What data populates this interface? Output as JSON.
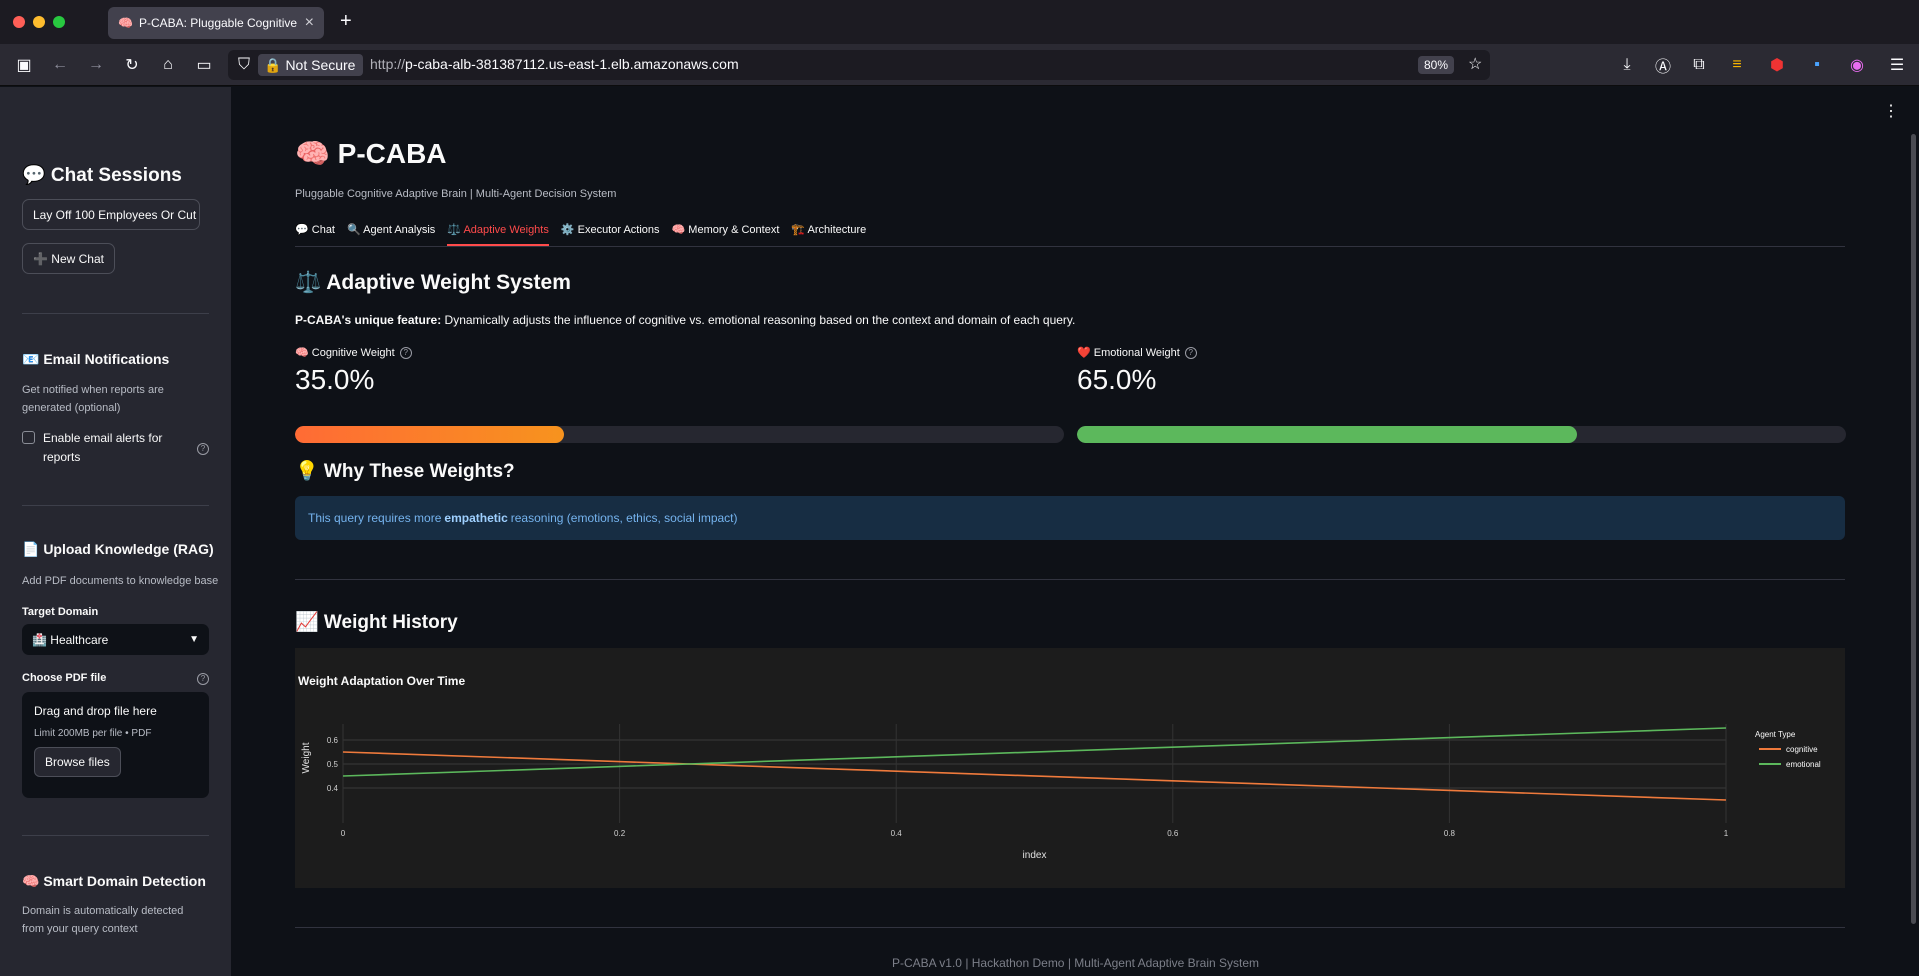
{
  "browser": {
    "tab_title": "P-CABA: Pluggable Cognitive Ad",
    "not_secure_label": "Not Secure",
    "url_proto": "http://",
    "url_host": "p-caba-alb-381387112.us-east-1.elb.amazonaws.com",
    "zoom": "80%"
  },
  "sidebar": {
    "chat_sessions_title": "💬 Chat Sessions",
    "session_button": "Lay Off 100 Employees Or Cut",
    "new_chat_button": "➕ New Chat",
    "email_title": "📧 Email Notifications",
    "email_desc": "Get notified when reports are generated (optional)",
    "email_checkbox_label": "Enable email alerts for reports",
    "upload_title": "📄 Upload Knowledge (RAG)",
    "upload_desc": "Add PDF documents to knowledge base",
    "target_domain_label": "Target Domain",
    "target_domain_value": "🏥 Healthcare",
    "choose_pdf_label": "Choose PDF file",
    "drag_drop": "Drag and drop file here",
    "limit": "Limit 200MB per file • PDF",
    "browse_button": "Browse files",
    "smart_title": "🧠 Smart Domain Detection",
    "smart_desc": "Domain is automatically detected from your query context"
  },
  "main": {
    "title": "🧠 P-CABA",
    "subtitle": "Pluggable Cognitive Adaptive Brain | Multi-Agent Decision System",
    "tabs": [
      {
        "label": "💬 Chat"
      },
      {
        "label": "🔍 Agent Analysis"
      },
      {
        "label": "⚖️ Adaptive Weights"
      },
      {
        "label": "⚙️ Executor Actions"
      },
      {
        "label": "🧠 Memory & Context"
      },
      {
        "label": "🏗️ Architecture"
      }
    ],
    "active_tab": 2,
    "section_title": "⚖️ Adaptive Weight System",
    "feature_bold": "P-CABA's unique feature:",
    "feature_text": "Dynamically adjusts the influence of cognitive vs. emotional reasoning based on the context and domain of each query.",
    "cognitive_label": "🧠 Cognitive Weight",
    "cognitive_value": "35.0%",
    "cognitive_fraction": 0.35,
    "emotional_label": "❤️ Emotional Weight",
    "emotional_value": "65.0%",
    "emotional_fraction": 0.65,
    "why_title": "💡 Why These Weights?",
    "info_pre": "This query requires more",
    "info_bold": "empathetic",
    "info_post": "reasoning (emotions, ethics, social impact)",
    "history_title": "📈 Weight History",
    "footer": "P-CABA v1.0 | Hackathon Demo | Multi-Agent Adaptive Brain System"
  },
  "colors": {
    "accent": "#ff4b4b",
    "cognitive_start": "#ff6b35",
    "cognitive_end": "#f7931e",
    "emotional": "#5cb85c",
    "info_bg": "#172d43"
  },
  "chart_data": {
    "type": "line",
    "title": "Weight Adaptation Over Time",
    "xlabel": "index",
    "ylabel": "Weight",
    "xlim": [
      0,
      1
    ],
    "ylim": [
      0.35,
      0.7
    ],
    "x_ticks": [
      "0",
      "0.2",
      "0.4",
      "0.6",
      "0.8",
      "1"
    ],
    "y_ticks": [
      "0.4",
      "0.5",
      "0.6"
    ],
    "legend_title": "Agent Type",
    "legend_position": "right",
    "series": [
      {
        "name": "cognitive",
        "color": "#ef7a3c",
        "x": [
          0,
          1
        ],
        "y": [
          0.55,
          0.35
        ]
      },
      {
        "name": "emotional",
        "color": "#5cb85c",
        "x": [
          0,
          1
        ],
        "y": [
          0.45,
          0.65
        ]
      }
    ]
  }
}
